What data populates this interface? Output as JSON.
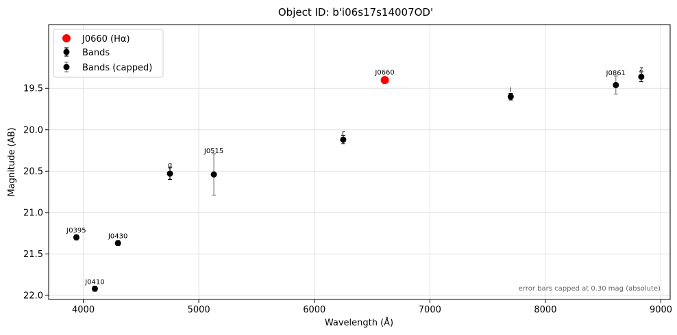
{
  "chart_data": {
    "type": "scatter",
    "title": "Object ID: b'i06s17s14007OD'",
    "xlabel": "Wavelength (Å)",
    "ylabel": "Magnitude (AB)",
    "xlim": [
      3700,
      9080
    ],
    "ylim": [
      22.05,
      18.73
    ],
    "y_inverted": true,
    "grid": true,
    "legend_position": "upper-left",
    "xticks": [
      4000,
      5000,
      6000,
      7000,
      8000,
      9000
    ],
    "yticks": [
      19.5,
      20.0,
      20.5,
      21.0,
      21.5,
      22.0
    ],
    "xtick_labels": [
      "4000",
      "5000",
      "6000",
      "7000",
      "8000",
      "9000"
    ],
    "ytick_labels": [
      "19.5",
      "20.0",
      "20.5",
      "21.0",
      "21.5",
      "22.0"
    ],
    "legend": [
      {
        "label": "J0660 (Hα)",
        "marker": "red-circle"
      },
      {
        "label": "Bands",
        "marker": "black-circle-errorbar"
      },
      {
        "label": "Bands (capped)",
        "marker": "black-circle-errorbar-gray"
      }
    ],
    "series": [
      {
        "name": "Bands",
        "points": [
          {
            "label": "J0395",
            "x": 3940,
            "y": 21.3,
            "err": 0.03
          },
          {
            "label": "J0410",
            "x": 4100,
            "y": 21.92,
            "err": 0.03
          },
          {
            "label": "J0430",
            "x": 4300,
            "y": 21.37,
            "err": 0.03
          },
          {
            "label": "g",
            "x": 4750,
            "y": 20.53,
            "err": 0.07
          },
          {
            "label": "r",
            "x": 6250,
            "y": 20.12,
            "err": 0.05
          },
          {
            "label": "i",
            "x": 7700,
            "y": 19.6,
            "err": 0.04
          },
          {
            "label": "z",
            "x": 8830,
            "y": 19.36,
            "err": 0.06
          }
        ]
      },
      {
        "name": "Bands (capped)",
        "points": [
          {
            "label": "J0515",
            "x": 5130,
            "y": 20.54,
            "err": 0.25
          },
          {
            "label": "J0861",
            "x": 8610,
            "y": 19.46,
            "err": 0.11
          }
        ]
      },
      {
        "name": "J0660 (Hα)",
        "points": [
          {
            "label": "J0660",
            "x": 6610,
            "y": 19.4
          }
        ]
      }
    ],
    "annotation": "error bars capped at 0.30 mag (absolute)",
    "colors": {
      "halpha": "#ff0000",
      "bands": "#000000",
      "capped_errorbar": "#808080",
      "grid": "#e0e0e0"
    }
  }
}
